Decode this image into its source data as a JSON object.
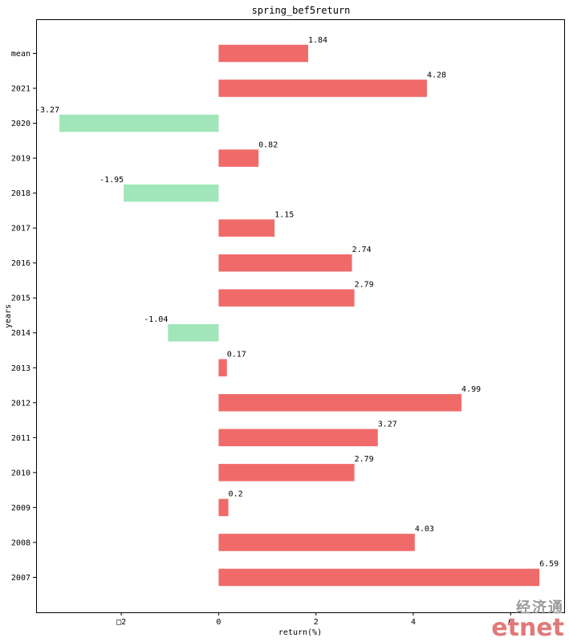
{
  "chart_data": {
    "type": "bar",
    "orientation": "horizontal",
    "title": "spring_bef5return",
    "xlabel": "return(%)",
    "ylabel": "years",
    "xlim": [
      -3.75,
      7.1
    ],
    "xticks": [
      -2,
      0,
      2,
      4,
      6
    ],
    "xtick_labels": [
      "□2",
      "0",
      "2",
      "4",
      "6"
    ],
    "grid": false,
    "categories": [
      "mean",
      "2021",
      "2020",
      "2019",
      "2018",
      "2017",
      "2016",
      "2015",
      "2014",
      "2013",
      "2012",
      "2011",
      "2010",
      "2009",
      "2008",
      "2007"
    ],
    "values": [
      1.84,
      4.28,
      -3.27,
      0.82,
      -1.95,
      1.15,
      2.74,
      2.79,
      -1.04,
      0.17,
      4.99,
      3.27,
      2.79,
      0.2,
      4.03,
      6.59
    ],
    "value_labels": [
      "1.84",
      "4.28",
      "-3.27",
      "0.82",
      "-1.95",
      "1.15",
      "2.74",
      "2.79",
      "-1.04",
      "0.17",
      "4.99",
      "3.27",
      "2.79",
      "0.2",
      "4.03",
      "6.59"
    ],
    "colors": {
      "positive": "#f06a6a",
      "negative": "#a0e6b8"
    }
  },
  "watermark": {
    "cn": "经济通",
    "en": "etnet"
  }
}
